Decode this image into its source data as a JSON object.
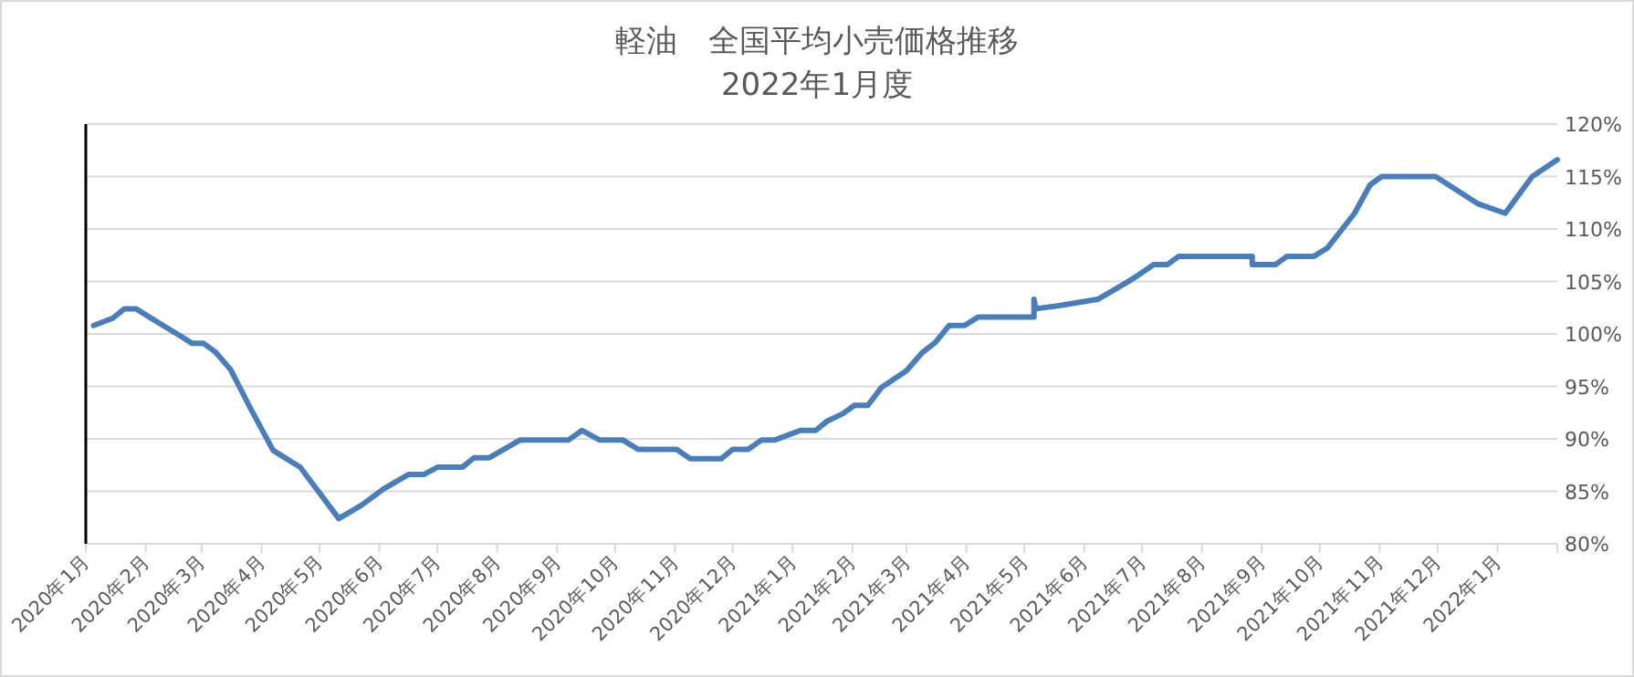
{
  "chart_data": {
    "type": "line",
    "title": "軽油　全国平均小売価格推移",
    "subtitle": "2022年1月度",
    "x": [
      "2020-01-05",
      "2020-01-15",
      "2020-01-21",
      "2020-01-27",
      "2020-02-03",
      "2020-02-11",
      "2020-02-19",
      "2020-02-25",
      "2020-03-02",
      "2020-03-08",
      "2020-03-16",
      "2020-03-26",
      "2020-04-07",
      "2020-04-21",
      "2020-05-11",
      "2020-05-23",
      "2020-06-03",
      "2020-06-16",
      "2020-06-24",
      "2020-07-01",
      "2020-07-14",
      "2020-07-20",
      "2020-07-28",
      "2020-08-13",
      "2020-09-07",
      "2020-09-14",
      "2020-09-23",
      "2020-10-05",
      "2020-10-13",
      "2020-11-02",
      "2020-11-09",
      "2020-11-25",
      "2020-12-01",
      "2020-12-09",
      "2020-12-16",
      "2020-12-23",
      "2021-01-05",
      "2021-01-13",
      "2021-01-19",
      "2021-01-27",
      "2021-02-02",
      "2021-02-09",
      "2021-02-16",
      "2021-03-01",
      "2021-03-09",
      "2021-03-16",
      "2021-03-23",
      "2021-03-31",
      "2021-04-07",
      "2021-05-06",
      "2021-05-06",
      "2021-05-07",
      "2021-05-19",
      "2021-06-08",
      "2021-06-23",
      "2021-06-29",
      "2021-07-07",
      "2021-07-14",
      "2021-07-20",
      "2021-08-27",
      "2021-08-27",
      "2021-09-08",
      "2021-09-14",
      "2021-09-28",
      "2021-10-05",
      "2021-10-19",
      "2021-10-27",
      "2021-11-02",
      "2021-11-30",
      "2021-12-22",
      "2022-01-05",
      "2022-01-19",
      "2022-02-01"
    ],
    "series": [
      {
        "color": "#4a7ebb",
        "values": [
          100.8,
          101.5,
          102.4,
          102.4,
          101.6,
          100.7,
          99.8,
          99.1,
          99.1,
          98.3,
          96.6,
          93.0,
          88.9,
          87.3,
          82.4,
          83.7,
          85.2,
          86.6,
          86.6,
          87.3,
          87.3,
          88.2,
          88.2,
          89.9,
          89.9,
          90.8,
          89.9,
          89.9,
          89.0,
          89.0,
          88.1,
          88.1,
          89.0,
          89.0,
          89.9,
          89.9,
          90.8,
          90.8,
          91.7,
          92.4,
          93.2,
          93.2,
          94.9,
          96.5,
          98.2,
          99.2,
          100.8,
          100.8,
          101.6,
          101.6,
          103.3,
          102.4,
          102.7,
          103.3,
          104.9,
          105.6,
          106.6,
          106.6,
          107.4,
          107.4,
          106.6,
          106.6,
          107.4,
          107.4,
          108.2,
          111.5,
          114.2,
          115.0,
          115.0,
          112.4,
          111.5,
          115.0,
          116.6
        ]
      }
    ],
    "xlim": [
      "2020-01-01",
      "2022-02-01"
    ],
    "xticks": [
      {
        "value": "2020-01-01",
        "label": "2020年1月"
      },
      {
        "value": "2020-02-01",
        "label": "2020年2月"
      },
      {
        "value": "2020-03-01",
        "label": "2020年3月"
      },
      {
        "value": "2020-04-01",
        "label": "2020年4月"
      },
      {
        "value": "2020-05-01",
        "label": "2020年5月"
      },
      {
        "value": "2020-06-01",
        "label": "2020年6月"
      },
      {
        "value": "2020-07-01",
        "label": "2020年7月"
      },
      {
        "value": "2020-08-01",
        "label": "2020年8月"
      },
      {
        "value": "2020-09-01",
        "label": "2020年9月"
      },
      {
        "value": "2020-10-01",
        "label": "2020年10月"
      },
      {
        "value": "2020-11-01",
        "label": "2020年11月"
      },
      {
        "value": "2020-12-01",
        "label": "2020年12月"
      },
      {
        "value": "2021-01-01",
        "label": "2021年1月"
      },
      {
        "value": "2021-02-01",
        "label": "2021年2月"
      },
      {
        "value": "2021-03-01",
        "label": "2021年3月"
      },
      {
        "value": "2021-04-01",
        "label": "2021年4月"
      },
      {
        "value": "2021-05-01",
        "label": "2021年5月"
      },
      {
        "value": "2021-06-01",
        "label": "2021年6月"
      },
      {
        "value": "2021-07-01",
        "label": "2021年7月"
      },
      {
        "value": "2021-08-01",
        "label": "2021年8月"
      },
      {
        "value": "2021-09-01",
        "label": "2021年9月"
      },
      {
        "value": "2021-10-01",
        "label": "2021年10月"
      },
      {
        "value": "2021-11-01",
        "label": "2021年11月"
      },
      {
        "value": "2021-12-01",
        "label": "2021年12月"
      },
      {
        "value": "2022-01-01",
        "label": "2022年1月"
      },
      {
        "value": "2022-02-01",
        "label": null
      }
    ],
    "ylim": [
      80,
      120
    ],
    "yticks": [
      {
        "value": 80,
        "label": "80%"
      },
      {
        "value": 85,
        "label": "85%"
      },
      {
        "value": 90,
        "label": "90%"
      },
      {
        "value": 95,
        "label": "95%"
      },
      {
        "value": 100,
        "label": "100%"
      },
      {
        "value": 105,
        "label": "105%"
      },
      {
        "value": 110,
        "label": "110%"
      },
      {
        "value": 115,
        "label": "115%"
      },
      {
        "value": 120,
        "label": "120%"
      }
    ],
    "grid": "y"
  }
}
